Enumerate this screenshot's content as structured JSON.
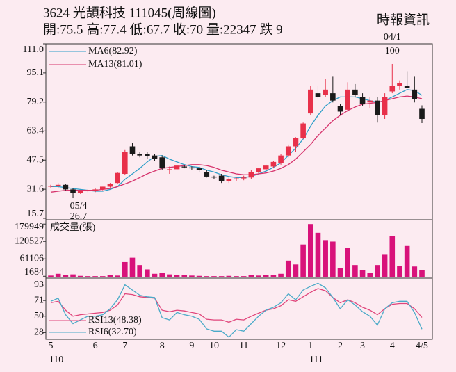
{
  "header": {
    "title": "3624  光頡科技  111045(周線圖)",
    "quote": "開:75.5 高:77.4 低:67.7 收:70 量:22347 跌 9",
    "source": "時報資訊"
  },
  "chart_data": [
    {
      "type": "candlestick",
      "categories": [
        "5",
        null,
        null,
        null,
        null,
        null,
        "6",
        null,
        null,
        null,
        "7",
        null,
        null,
        null,
        null,
        "8",
        null,
        null,
        null,
        "9",
        null,
        null,
        "10",
        null,
        null,
        null,
        "11",
        null,
        null,
        null,
        null,
        "12",
        null,
        null,
        null,
        "1",
        null,
        null,
        null,
        "2",
        null,
        null,
        "3",
        null,
        null,
        null,
        "4",
        null,
        null,
        null,
        "4/5"
      ],
      "categories_year": [
        "110",
        null,
        null,
        null,
        null,
        null,
        null,
        null,
        null,
        null,
        null,
        null,
        null,
        null,
        null,
        null,
        null,
        null,
        null,
        null,
        null,
        null,
        null,
        null,
        null,
        null,
        null,
        null,
        null,
        null,
        null,
        null,
        null,
        null,
        null,
        "111",
        null,
        null,
        null,
        null,
        null,
        null,
        null,
        null,
        null,
        null,
        null,
        null,
        null,
        null,
        null
      ],
      "open": [
        33,
        33.5,
        34,
        31.5,
        29.5,
        30.5,
        31,
        31.5,
        33,
        35,
        40,
        55,
        51,
        51,
        50,
        49,
        42,
        42.5,
        44,
        43.5,
        43,
        41,
        38.5,
        39,
        36,
        37,
        37.5,
        38,
        41,
        42.5,
        44,
        46,
        50,
        55,
        59.5,
        73,
        84,
        83,
        84,
        77,
        75,
        86,
        82,
        79,
        80,
        72,
        85,
        88,
        88,
        86,
        75.5
      ],
      "high": [
        34,
        35,
        34.5,
        32,
        31,
        31.5,
        32,
        33,
        35,
        41,
        53,
        57,
        52,
        52,
        51,
        50,
        44,
        45,
        45,
        44,
        44,
        42,
        39,
        40,
        38,
        38,
        39,
        42,
        43,
        45,
        47,
        51,
        56,
        60,
        68,
        88,
        88,
        92,
        93,
        78,
        90,
        89,
        84,
        82,
        82,
        84,
        100,
        91,
        96,
        93,
        77.4
      ],
      "low": [
        32.5,
        32,
        31,
        26.7,
        29,
        30,
        30,
        31,
        32.5,
        34.5,
        39.5,
        50,
        49,
        48,
        47,
        42,
        40,
        42,
        43,
        42,
        41,
        38,
        37,
        35,
        35,
        36,
        36.5,
        37,
        40,
        42,
        43,
        45,
        49,
        52,
        59,
        72,
        81,
        82,
        79,
        72,
        74,
        82,
        77,
        76,
        68,
        70,
        84,
        86,
        87,
        79,
        67.7
      ],
      "close": [
        33.5,
        34,
        31.5,
        29.5,
        30.5,
        31,
        31.5,
        33,
        34.5,
        40.5,
        52,
        51,
        50,
        49.5,
        48,
        43,
        42.5,
        44.5,
        43.5,
        43,
        42,
        38.5,
        38,
        36,
        37,
        37.5,
        38,
        41,
        43,
        44.5,
        46.5,
        50,
        55,
        59.5,
        67.5,
        86,
        82,
        86,
        80,
        74,
        86,
        83,
        78,
        80,
        72,
        82,
        88,
        89.5,
        87,
        81,
        70
      ],
      "up_color": "#e8304a",
      "down_color": "#1a1a1a",
      "series": [
        {
          "name": "MA6(82.92)",
          "color": "#2f9fc9",
          "values": [
            33,
            33,
            32.5,
            32,
            31.5,
            31,
            30.5,
            30.5,
            31.5,
            33,
            37,
            40,
            43,
            46.5,
            49.5,
            50,
            48,
            46.5,
            45,
            44,
            43.5,
            42,
            41,
            39.5,
            38.5,
            38,
            38,
            38.5,
            40,
            41.5,
            43.5,
            46,
            50,
            54,
            59,
            66,
            72,
            77,
            80,
            82,
            82,
            82,
            81,
            80,
            79,
            80,
            82,
            84,
            86,
            85.5,
            82.92
          ]
        },
        {
          "name": "MA13(81.01)",
          "color": "#d6336c",
          "values": [
            30,
            30.5,
            31,
            31,
            31,
            31,
            31,
            31.5,
            32,
            33,
            34.5,
            36,
            38,
            40,
            41.5,
            43,
            43.5,
            44,
            44.5,
            45,
            45,
            44.5,
            43.5,
            42,
            41,
            40,
            39.5,
            39.5,
            40,
            40.5,
            41.5,
            43,
            45,
            48,
            52,
            56,
            61,
            65,
            69,
            72,
            74.5,
            76.5,
            78,
            78.5,
            79,
            80,
            81,
            82,
            82.5,
            82,
            81.01
          ]
        }
      ],
      "legend": "upper left",
      "high_label": {
        "date": "04/1",
        "value": 100
      },
      "low_label": {
        "date": "05/4",
        "value": 26.7
      },
      "ylim": [
        15.7,
        111.0
      ],
      "yticks": [
        15.7,
        31.6,
        47.5,
        63.4,
        79.2,
        95.1,
        {
          "value": 111.0,
          "label": "111.0"
        }
      ]
    },
    {
      "type": "bar",
      "title": "成交量(張)",
      "color": "#d8127a",
      "values": [
        4000,
        10000,
        6000,
        8000,
        3000,
        2000,
        2000,
        2000,
        7000,
        4000,
        50000,
        65000,
        40000,
        25000,
        10000,
        12000,
        8000,
        6000,
        5000,
        4000,
        3000,
        2000,
        2000,
        2000,
        3000,
        2000,
        2000,
        6000,
        4000,
        6000,
        5000,
        10000,
        55000,
        42000,
        110000,
        180000,
        150000,
        125000,
        120000,
        30000,
        98000,
        40000,
        22000,
        12000,
        40000,
        75000,
        138000,
        38000,
        105000,
        35000,
        22347
      ],
      "ylim": [
        0,
        190000
      ],
      "yticks": [
        1684,
        61106,
        120527,
        179949
      ]
    },
    {
      "type": "line",
      "series": [
        {
          "name": "RSI13(48.38)",
          "color": "#e0457b",
          "values": [
            68,
            70,
            58,
            50,
            52,
            53,
            54,
            55,
            58,
            65,
            80,
            79,
            76,
            75,
            74,
            58,
            56,
            58,
            57,
            55,
            53,
            46,
            45,
            45,
            42,
            46,
            45,
            50,
            54,
            58,
            60,
            64,
            72,
            70,
            76,
            82,
            87,
            84,
            75,
            68,
            72,
            68,
            62,
            58,
            52,
            60,
            66,
            67,
            67,
            60,
            48.38
          ]
        },
        {
          "name": "RSI6(32.70)",
          "color": "#4aaac8",
          "values": [
            70,
            74,
            52,
            40,
            45,
            50,
            50,
            52,
            60,
            72,
            92,
            85,
            78,
            76,
            75,
            48,
            45,
            55,
            52,
            50,
            46,
            33,
            30,
            30,
            22,
            32,
            30,
            40,
            50,
            58,
            62,
            68,
            80,
            72,
            85,
            90,
            94,
            88,
            75,
            60,
            72,
            65,
            56,
            50,
            38,
            60,
            68,
            70,
            70,
            55,
            32.7
          ]
        }
      ],
      "legend": "lower left",
      "ylim": [
        20,
        100
      ],
      "yticks": [
        28,
        50,
        71,
        93
      ]
    }
  ]
}
